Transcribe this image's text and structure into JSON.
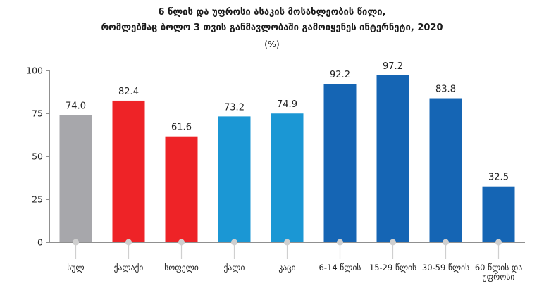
{
  "chart_data": {
    "type": "bar",
    "title_line1": "6 წლის და უფროსი ასაკის მოსახლეობის წილი,",
    "title_line2": "რომლებმაც ბოლო 3 თვის განმავლობაში გამოიყენეს ინტერნეტი, 2020",
    "unit": "(%)",
    "ylim": [
      0,
      100
    ],
    "yticks": [
      0,
      25,
      50,
      75,
      100
    ],
    "grid": false,
    "categories": [
      [
        "სულ"
      ],
      [
        "ქალაქი"
      ],
      [
        "სოფელი"
      ],
      [
        "ქალი"
      ],
      [
        "კაცი"
      ],
      [
        "6-14 წლის"
      ],
      [
        "15-29 წლის"
      ],
      [
        "30-59 წლის"
      ],
      [
        "60 წლის და",
        "უფროსი"
      ]
    ],
    "values": [
      74.0,
      82.4,
      61.6,
      73.2,
      74.9,
      92.2,
      97.2,
      83.8,
      32.5
    ],
    "value_labels": [
      "74.0",
      "82.4",
      "61.6",
      "73.2",
      "74.9",
      "92.2",
      "97.2",
      "83.8",
      "32.5"
    ],
    "colors": [
      "#a7a7ab",
      "#ee2327",
      "#ee2327",
      "#1b97d4",
      "#1b97d4",
      "#1565b4",
      "#1565b4",
      "#1565b4",
      "#1565b4"
    ],
    "axis_color": "#222222",
    "marker_color": "#cfcfcf"
  }
}
